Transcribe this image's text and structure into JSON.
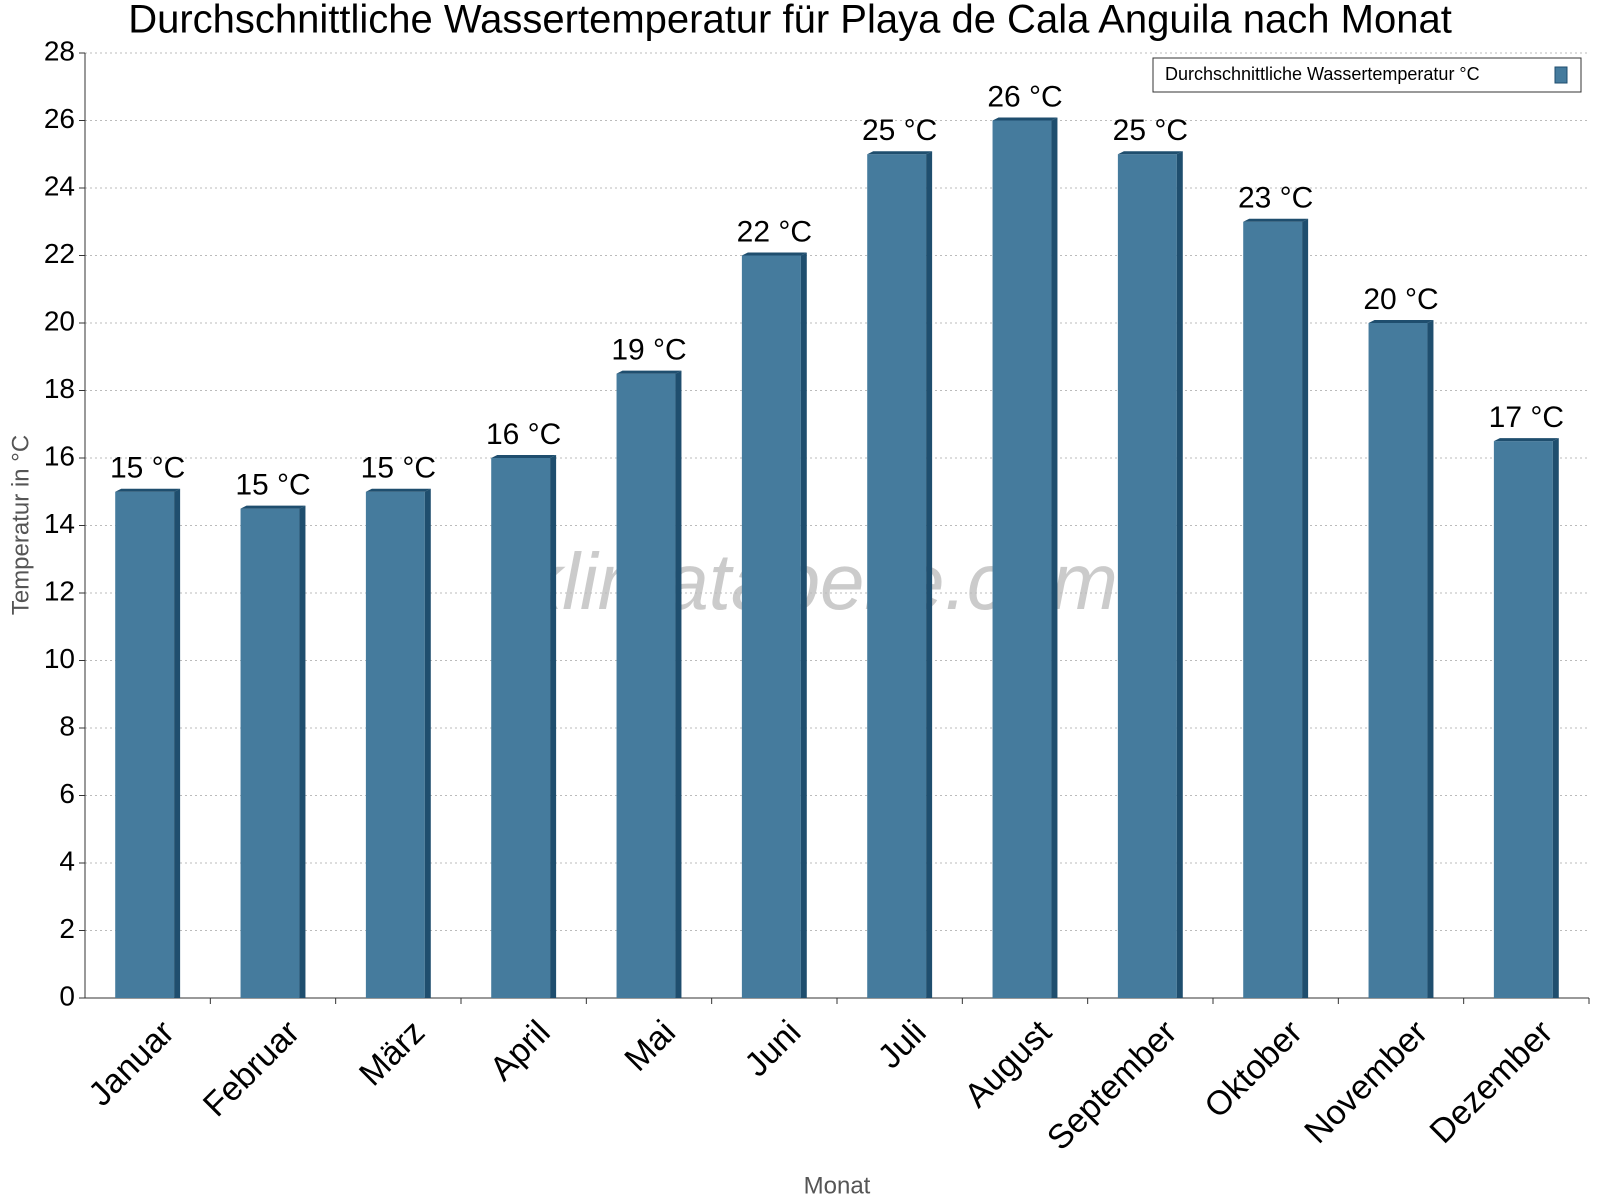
{
  "chart_data": {
    "type": "bar",
    "title": "Durchschnittliche Wassertemperatur für Playa de Cala Anguila nach Monat",
    "x_label": "Monat",
    "y_label": "Temperatur in °C",
    "watermark": "klimatabelle.com",
    "categories": [
      "Januar",
      "Februar",
      "März",
      "April",
      "Mai",
      "Juni",
      "Juli",
      "August",
      "September",
      "Oktober",
      "November",
      "Dezember"
    ],
    "series": [
      {
        "name": "Durchschnittliche Wassertemperatur °C",
        "color": "#457b9d",
        "values": [
          15,
          14.5,
          15,
          16,
          18.5,
          22,
          25,
          26,
          25,
          23,
          20,
          16.5
        ],
        "value_labels": [
          "15 °C",
          "15 °C",
          "15 °C",
          "16 °C",
          "19 °C",
          "22 °C",
          "25 °C",
          "26 °C",
          "25 °C",
          "23 °C",
          "20 °C",
          "17 °C"
        ]
      }
    ],
    "ylim": [
      0,
      28
    ],
    "yticks": [
      0,
      2,
      4,
      6,
      8,
      10,
      12,
      14,
      16,
      18,
      20,
      22,
      24,
      26,
      28
    ],
    "grid": true,
    "legend": "top-right"
  }
}
